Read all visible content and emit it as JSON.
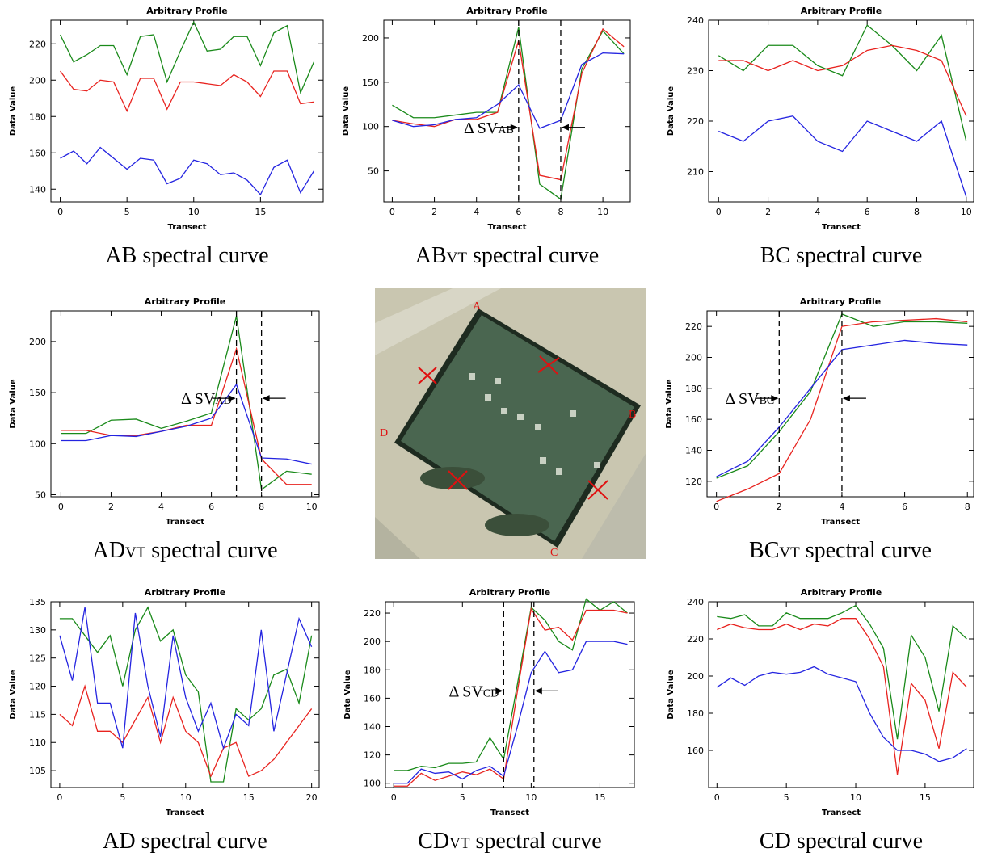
{
  "chart_data": [
    {
      "type": "line",
      "title": "Arbitrary Profile",
      "x_label": "Transect",
      "y_label": "Data Value",
      "caption": [
        "AB spectral curve"
      ],
      "x": [
        0,
        1,
        2,
        3,
        4,
        5,
        6,
        7,
        8,
        9,
        10,
        11,
        12,
        13,
        14,
        15,
        16,
        17,
        18,
        19
      ],
      "xlim": [
        -0.7,
        19.7
      ],
      "xticks": [
        0,
        5,
        10,
        15
      ],
      "ylim": [
        133,
        233
      ],
      "yticks": [
        140,
        160,
        180,
        200,
        220
      ],
      "series": [
        {
          "color": "#1a8a1a",
          "values": [
            225,
            210,
            214,
            219,
            219,
            203,
            224,
            225,
            199,
            216,
            232,
            216,
            217,
            224,
            224,
            208,
            226,
            230,
            193,
            210
          ]
        },
        {
          "color": "#e8231f",
          "values": [
            205,
            195,
            194,
            200,
            199,
            183,
            201,
            201,
            184,
            199,
            199,
            198,
            197,
            203,
            199,
            191,
            205,
            205,
            187,
            188
          ]
        },
        {
          "color": "#2424e0",
          "values": [
            157,
            161,
            154,
            163,
            157,
            151,
            157,
            156,
            143,
            146,
            156,
            154,
            148,
            149,
            145,
            137,
            152,
            156,
            138,
            150
          ]
        }
      ]
    },
    {
      "type": "line",
      "title": "Arbitrary Profile",
      "x_label": "Transect",
      "y_label": "Data Value",
      "caption": [
        "AB",
        "VT",
        " spectral curve"
      ],
      "x": [
        0,
        1,
        2,
        3,
        4,
        5,
        6,
        7,
        8,
        9,
        10,
        11
      ],
      "xlim": [
        -0.4,
        11.3
      ],
      "xticks": [
        0,
        2,
        4,
        6,
        8,
        10
      ],
      "ylim": [
        15,
        220
      ],
      "yticks": [
        50,
        100,
        150,
        200
      ],
      "vlines": [
        6,
        8
      ],
      "annotation": [
        "Δ SV",
        "AB"
      ],
      "series": [
        {
          "color": "#1a8a1a",
          "values": [
            124,
            110,
            110,
            113,
            116,
            116,
            212,
            35,
            18,
            165,
            208,
            182
          ]
        },
        {
          "color": "#e8231f",
          "values": [
            107,
            103,
            100,
            108,
            108,
            116,
            197,
            45,
            40,
            160,
            210,
            190
          ]
        },
        {
          "color": "#2424e0",
          "values": [
            107,
            100,
            102,
            108,
            110,
            125,
            147,
            98,
            107,
            170,
            183,
            182
          ]
        }
      ]
    },
    {
      "type": "line",
      "title": "Arbitrary Profile",
      "x_label": "Transect",
      "y_label": "Data Value",
      "caption": [
        "BC spectral curve"
      ],
      "x": [
        0,
        1,
        2,
        3,
        4,
        5,
        6,
        7,
        8,
        9,
        10
      ],
      "xlim": [
        -0.4,
        10.3
      ],
      "xticks": [
        0,
        2,
        4,
        6,
        8,
        10
      ],
      "ylim": [
        204,
        240
      ],
      "yticks": [
        210,
        220,
        230,
        240
      ],
      "series": [
        {
          "color": "#1a8a1a",
          "values": [
            233,
            230,
            235,
            235,
            231,
            229,
            239,
            235,
            230,
            237,
            216
          ]
        },
        {
          "color": "#e8231f",
          "values": [
            232,
            232,
            230,
            232,
            230,
            231,
            234,
            235,
            234,
            232,
            221
          ]
        },
        {
          "color": "#2424e0",
          "values": [
            218,
            216,
            220,
            221,
            216,
            214,
            220,
            218,
            216,
            220,
            205
          ]
        }
      ]
    },
    {
      "type": "line",
      "title": "Arbitrary Profile",
      "x_label": "Transect",
      "y_label": "Data Value",
      "caption": [
        "AD",
        "VT",
        " spectral curve"
      ],
      "x": [
        0,
        1,
        2,
        3,
        4,
        5,
        6,
        7,
        8,
        9,
        10
      ],
      "xlim": [
        -0.4,
        10.3
      ],
      "xticks": [
        0,
        2,
        4,
        6,
        8,
        10
      ],
      "ylim": [
        48,
        230
      ],
      "yticks": [
        50,
        100,
        150,
        200
      ],
      "vlines": [
        7,
        8
      ],
      "annotation": [
        "Δ SV",
        "AD"
      ],
      "series": [
        {
          "color": "#1a8a1a",
          "values": [
            110,
            110,
            123,
            124,
            115,
            122,
            130,
            225,
            55,
            73,
            70
          ]
        },
        {
          "color": "#e8231f",
          "values": [
            113,
            113,
            108,
            108,
            112,
            118,
            118,
            193,
            85,
            60,
            60
          ]
        },
        {
          "color": "#2424e0",
          "values": [
            103,
            103,
            108,
            107,
            112,
            117,
            125,
            158,
            86,
            85,
            80
          ]
        }
      ]
    },
    {
      "type": "line",
      "title": "Arbitrary Profile",
      "x_label": "Transect",
      "y_label": "Data Value",
      "caption": [
        "BC",
        "VT",
        " spectral curve"
      ],
      "x": [
        0,
        1,
        2,
        3,
        4,
        5,
        6,
        7,
        8
      ],
      "xlim": [
        -0.3,
        8.2
      ],
      "xticks": [
        0,
        2,
        4,
        6,
        8
      ],
      "ylim": [
        110,
        230
      ],
      "yticks": [
        120,
        140,
        160,
        180,
        200,
        220
      ],
      "vlines": [
        2,
        4
      ],
      "annotation": [
        "Δ SV",
        "BC"
      ],
      "series": [
        {
          "color": "#1a8a1a",
          "values": [
            122,
            130,
            152,
            178,
            228,
            220,
            223,
            223,
            222
          ]
        },
        {
          "color": "#e8231f",
          "values": [
            107,
            115,
            125,
            160,
            220,
            223,
            224,
            225,
            223
          ]
        },
        {
          "color": "#2424e0",
          "values": [
            123,
            133,
            155,
            180,
            205,
            208,
            211,
            209,
            208
          ]
        }
      ]
    },
    {
      "type": "line",
      "title": "Arbitrary Profile",
      "x_label": "Transect",
      "y_label": "Data Value",
      "caption": [
        "AD spectral curve"
      ],
      "x": [
        0,
        1,
        2,
        3,
        4,
        5,
        6,
        7,
        8,
        9,
        10,
        11,
        12,
        13,
        14,
        15,
        16,
        17,
        18,
        19,
        20
      ],
      "xlim": [
        -0.7,
        20.6
      ],
      "xticks": [
        0,
        5,
        10,
        15,
        20
      ],
      "ylim": [
        102,
        135
      ],
      "yticks": [
        105,
        110,
        115,
        120,
        125,
        130,
        135
      ],
      "series": [
        {
          "color": "#1a8a1a",
          "values": [
            132,
            132,
            129,
            126,
            129,
            120,
            130,
            134,
            128,
            130,
            122,
            119,
            103,
            103,
            116,
            114,
            116,
            122,
            123,
            117,
            129
          ]
        },
        {
          "color": "#e8231f",
          "values": [
            115,
            113,
            120,
            112,
            112,
            110,
            114,
            118,
            110,
            118,
            112,
            110,
            104,
            109,
            110,
            104,
            105,
            107,
            110,
            113,
            116
          ]
        },
        {
          "color": "#2424e0",
          "values": [
            129,
            121,
            134,
            117,
            117,
            109,
            133,
            120,
            111,
            129,
            118,
            112,
            117,
            109,
            115,
            113,
            130,
            112,
            122,
            132,
            127
          ]
        }
      ]
    },
    {
      "type": "line",
      "title": "Arbitrary Profile",
      "x_label": "Transect",
      "y_label": "Data Value",
      "caption": [
        "CD",
        "VT",
        " spectral curve"
      ],
      "x": [
        0,
        1,
        2,
        3,
        4,
        5,
        6,
        7,
        8,
        9,
        10,
        11,
        12,
        13,
        14,
        15,
        16,
        17
      ],
      "xlim": [
        -0.6,
        17.5
      ],
      "xticks": [
        0,
        5,
        10,
        15
      ],
      "ylim": [
        97,
        228
      ],
      "yticks": [
        100,
        120,
        140,
        160,
        180,
        200,
        220
      ],
      "vlines": [
        8,
        10.2
      ],
      "annotation": [
        "Δ SV",
        "CD"
      ],
      "series": [
        {
          "color": "#1a8a1a",
          "values": [
            109,
            109,
            112,
            111,
            114,
            114,
            115,
            132,
            117,
            170,
            224,
            215,
            200,
            194,
            230,
            222,
            228,
            220
          ]
        },
        {
          "color": "#e8231f",
          "values": [
            98,
            98,
            107,
            102,
            105,
            108,
            106,
            110,
            103,
            165,
            223,
            208,
            210,
            201,
            222,
            222,
            222,
            220
          ]
        },
        {
          "color": "#2424e0",
          "values": [
            100,
            100,
            110,
            107,
            108,
            103,
            109,
            112,
            105,
            140,
            178,
            193,
            178,
            180,
            200,
            200,
            200,
            198
          ]
        }
      ]
    },
    {
      "type": "line",
      "title": "Arbitrary Profile",
      "x_label": "Transect",
      "y_label": "Data Value",
      "caption": [
        "CD spectral curve"
      ],
      "x": [
        0,
        1,
        2,
        3,
        4,
        5,
        6,
        7,
        8,
        9,
        10,
        11,
        12,
        13,
        14,
        15,
        16,
        17,
        18
      ],
      "xlim": [
        -0.6,
        18.5
      ],
      "xticks": [
        0,
        5,
        10,
        15
      ],
      "ylim": [
        140,
        240
      ],
      "yticks": [
        160,
        180,
        200,
        220,
        240
      ],
      "series": [
        {
          "color": "#1a8a1a",
          "values": [
            232,
            231,
            233,
            227,
            227,
            234,
            231,
            231,
            231,
            234,
            238,
            228,
            215,
            166,
            222,
            210,
            181,
            227,
            220
          ]
        },
        {
          "color": "#e8231f",
          "values": [
            225,
            228,
            226,
            225,
            225,
            228,
            225,
            228,
            227,
            231,
            231,
            220,
            205,
            147,
            196,
            187,
            161,
            202,
            194
          ]
        },
        {
          "color": "#2424e0",
          "values": [
            194,
            199,
            195,
            200,
            202,
            201,
            202,
            205,
            201,
            199,
            197,
            180,
            167,
            160,
            160,
            158,
            154,
            156,
            161
          ]
        }
      ]
    }
  ],
  "image": {
    "labels": [
      "A",
      "B",
      "C",
      "D"
    ]
  }
}
